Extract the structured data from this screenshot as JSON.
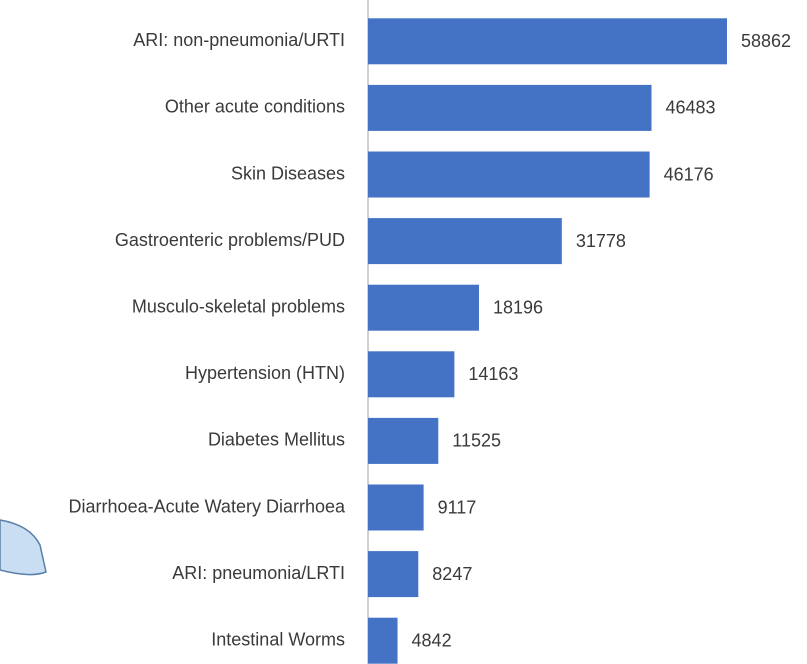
{
  "chart_data": {
    "type": "barh",
    "categories": [
      "ARI: non-pneumonia/URTI",
      "Other acute conditions",
      "Skin Diseases",
      "Gastroenteric problems/PUD",
      "Musculo-skeletal problems",
      "Hypertension (HTN)",
      "Diabetes Mellitus",
      "Diarrhoea-Acute Watery Diarrhoea",
      "ARI: pneumonia/LRTI",
      "Intestinal Worms"
    ],
    "values": [
      58862,
      46483,
      46176,
      31778,
      18196,
      14163,
      11525,
      9117,
      8247,
      4842
    ],
    "color": "#4472c4"
  }
}
